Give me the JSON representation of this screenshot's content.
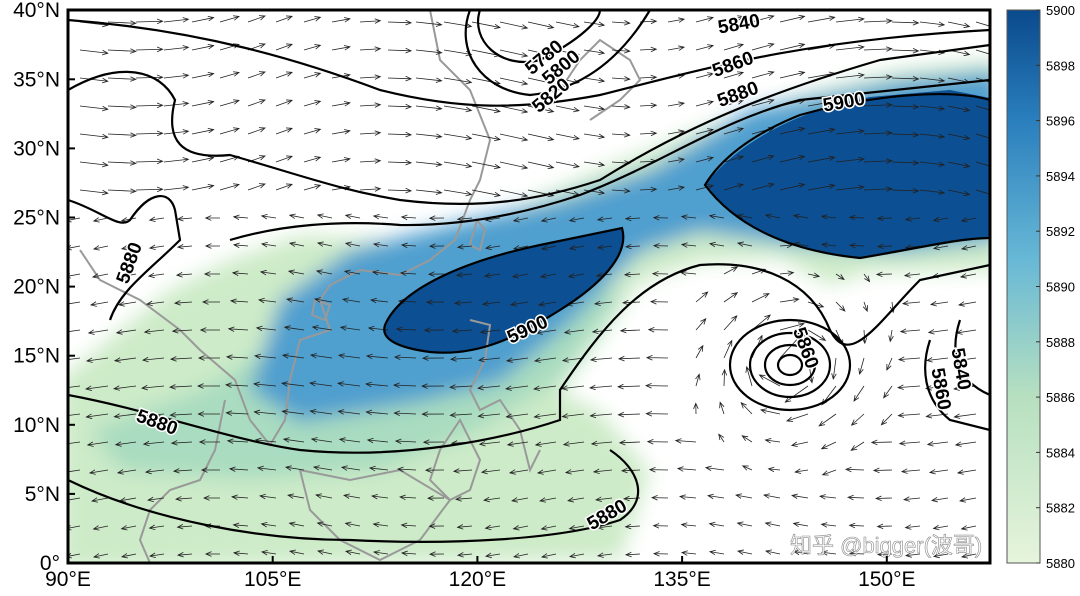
{
  "map": {
    "x_axis": {
      "ticks": [
        "90°E",
        "105°E",
        "120°E",
        "135°E",
        "150°E"
      ]
    },
    "y_axis": {
      "ticks": [
        "0°",
        "5°N",
        "10°N",
        "15°N",
        "20°N",
        "25°N",
        "30°N",
        "35°N",
        "40°N"
      ]
    },
    "colorbar": {
      "range": [
        5880,
        5900
      ],
      "ticks": [
        5880,
        5882,
        5884,
        5886,
        5888,
        5890,
        5892,
        5894,
        5896,
        5898,
        5900
      ]
    },
    "contour_labels": [
      "5840",
      "5780",
      "5800",
      "5820",
      "5860",
      "5880",
      "5900",
      "5880",
      "5900",
      "5880",
      "5880",
      "5860",
      "5840",
      "5860"
    ],
    "watermark": "知乎 @bigger(波哥)"
  }
}
